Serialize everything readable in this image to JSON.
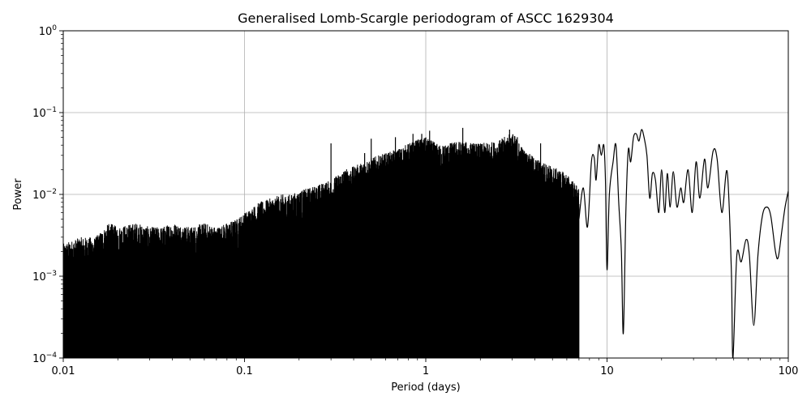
{
  "chart_data": {
    "type": "line",
    "title": "Generalised Lomb-Scargle periodogram of ASCC 1629304",
    "xlabel": "Period (days)",
    "ylabel": "Power",
    "xscale": "log",
    "yscale": "log",
    "xlim": [
      0.01,
      100
    ],
    "ylim": [
      0.0001,
      1
    ],
    "grid": true,
    "line_color": "#000000",
    "x_ticks": [
      {
        "value": 0.01,
        "label": "0.01"
      },
      {
        "value": 0.1,
        "label": "0.1"
      },
      {
        "value": 1,
        "label": "1"
      },
      {
        "value": 10,
        "label": "10"
      },
      {
        "value": 100,
        "label": "100"
      }
    ],
    "y_ticks": [
      {
        "value": 0.0001,
        "base": "10",
        "exp": "−4"
      },
      {
        "value": 0.001,
        "base": "10",
        "exp": "−3"
      },
      {
        "value": 0.01,
        "base": "10",
        "exp": "−2"
      },
      {
        "value": 0.1,
        "base": "10",
        "exp": "−1"
      },
      {
        "value": 1,
        "base": "10",
        "exp": "0"
      }
    ],
    "series": [
      {
        "envelope": [
          [
            0.01,
            0.0025
          ],
          [
            0.0125,
            0.003
          ],
          [
            0.015,
            0.003
          ],
          [
            0.018,
            0.0045
          ],
          [
            0.02,
            0.004
          ],
          [
            0.025,
            0.0045
          ],
          [
            0.03,
            0.004
          ],
          [
            0.035,
            0.004
          ],
          [
            0.04,
            0.0045
          ],
          [
            0.05,
            0.004
          ],
          [
            0.06,
            0.0045
          ],
          [
            0.07,
            0.004
          ],
          [
            0.08,
            0.0045
          ],
          [
            0.09,
            0.005
          ],
          [
            0.1,
            0.006
          ],
          [
            0.12,
            0.008
          ],
          [
            0.14,
            0.009
          ],
          [
            0.16,
            0.01
          ],
          [
            0.18,
            0.01
          ],
          [
            0.2,
            0.011
          ],
          [
            0.25,
            0.013
          ],
          [
            0.3,
            0.015
          ],
          [
            0.35,
            0.02
          ],
          [
            0.4,
            0.022
          ],
          [
            0.45,
            0.025
          ],
          [
            0.5,
            0.028
          ],
          [
            0.6,
            0.032
          ],
          [
            0.7,
            0.036
          ],
          [
            0.8,
            0.042
          ],
          [
            0.9,
            0.047
          ],
          [
            1.0,
            0.05
          ],
          [
            1.2,
            0.04
          ],
          [
            1.5,
            0.045
          ],
          [
            2.0,
            0.042
          ],
          [
            2.5,
            0.045
          ],
          [
            3.0,
            0.058
          ],
          [
            3.5,
            0.035
          ],
          [
            4.0,
            0.028
          ],
          [
            5.0,
            0.022
          ],
          [
            6.0,
            0.018
          ],
          [
            7.0,
            0.012
          ]
        ],
        "peaks": [
          [
            0.3,
            0.042
          ],
          [
            0.46,
            0.032
          ],
          [
            0.5,
            0.048
          ],
          [
            0.68,
            0.05
          ],
          [
            0.85,
            0.055
          ],
          [
            0.95,
            0.055
          ],
          [
            1.05,
            0.06
          ],
          [
            1.6,
            0.065
          ],
          [
            2.9,
            0.062
          ],
          [
            3.2,
            0.05
          ],
          [
            4.3,
            0.042
          ],
          [
            3.75,
            0.03
          ]
        ],
        "smooth": [
          [
            7.0,
            0.005
          ],
          [
            7.4,
            0.012
          ],
          [
            7.8,
            0.004
          ],
          [
            8.2,
            0.025
          ],
          [
            8.5,
            0.028
          ],
          [
            8.7,
            0.015
          ],
          [
            9.0,
            0.04
          ],
          [
            9.3,
            0.03
          ],
          [
            9.6,
            0.04
          ],
          [
            9.8,
            0.015
          ],
          [
            10.0,
            0.0012
          ],
          [
            10.3,
            0.01
          ],
          [
            10.8,
            0.025
          ],
          [
            11.2,
            0.04
          ],
          [
            11.6,
            0.008
          ],
          [
            12.0,
            0.002
          ],
          [
            12.3,
            0.0002
          ],
          [
            12.7,
            0.006
          ],
          [
            13.1,
            0.035
          ],
          [
            13.5,
            0.025
          ],
          [
            14.0,
            0.05
          ],
          [
            14.5,
            0.055
          ],
          [
            15.0,
            0.045
          ],
          [
            15.5,
            0.062
          ],
          [
            16.0,
            0.05
          ],
          [
            16.6,
            0.03
          ],
          [
            17.2,
            0.009
          ],
          [
            17.8,
            0.018
          ],
          [
            18.5,
            0.015
          ],
          [
            19.3,
            0.006
          ],
          [
            20.0,
            0.02
          ],
          [
            20.8,
            0.006
          ],
          [
            21.5,
            0.018
          ],
          [
            22.3,
            0.007
          ],
          [
            23.2,
            0.019
          ],
          [
            24.3,
            0.007
          ],
          [
            25.5,
            0.012
          ],
          [
            26.5,
            0.008
          ],
          [
            28.0,
            0.02
          ],
          [
            29.5,
            0.006
          ],
          [
            31.0,
            0.025
          ],
          [
            32.5,
            0.009
          ],
          [
            34.5,
            0.027
          ],
          [
            36.0,
            0.012
          ],
          [
            38.5,
            0.034
          ],
          [
            40.5,
            0.027
          ],
          [
            43.0,
            0.006
          ],
          [
            46.0,
            0.019
          ],
          [
            48.5,
            0.0012
          ],
          [
            49.5,
            0.0001
          ],
          [
            52.0,
            0.0018
          ],
          [
            55.0,
            0.0015
          ],
          [
            58.5,
            0.0028
          ],
          [
            61.0,
            0.0018
          ],
          [
            64.5,
            0.00025
          ],
          [
            68.0,
            0.0018
          ],
          [
            72.0,
            0.0055
          ],
          [
            76.0,
            0.007
          ],
          [
            80.0,
            0.0055
          ],
          [
            85.0,
            0.002
          ],
          [
            88.0,
            0.0017
          ],
          [
            92.0,
            0.0035
          ],
          [
            96.0,
            0.007
          ],
          [
            100.0,
            0.011
          ]
        ]
      }
    ]
  }
}
